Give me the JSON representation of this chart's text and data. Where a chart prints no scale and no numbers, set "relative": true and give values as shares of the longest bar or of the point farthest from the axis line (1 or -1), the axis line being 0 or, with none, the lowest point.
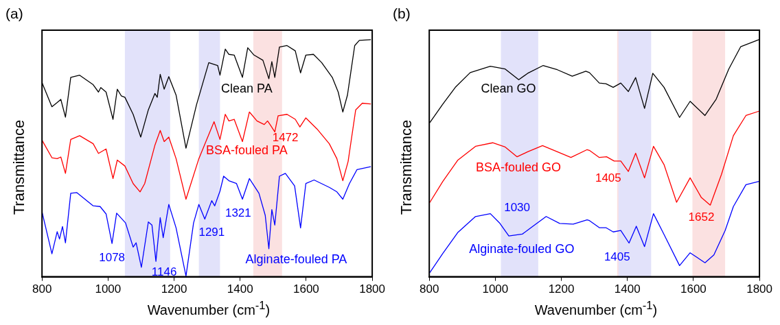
{
  "chart_data": [
    {
      "type": "line",
      "title": "(a)",
      "xlabel": "Wavenumber (cm$^{-1}$)",
      "ylabel": "Transmittance",
      "xlim": [
        800,
        1800
      ],
      "xticks": [
        800,
        1000,
        1200,
        1400,
        1600,
        1800
      ],
      "relative": true,
      "grid": false,
      "legend": false,
      "series": [
        {
          "name": "Clean PA",
          "color": "#000000",
          "x": [
            800,
            830,
            846,
            857,
            871,
            887,
            914,
            955,
            971,
            978,
            994,
            1015,
            1028,
            1040,
            1051,
            1076,
            1099,
            1122,
            1142,
            1149,
            1158,
            1170,
            1184,
            1206,
            1236,
            1268,
            1305,
            1332,
            1339,
            1355,
            1366,
            1382,
            1407,
            1423,
            1442,
            1469,
            1487,
            1496,
            1505,
            1519,
            1542,
            1567,
            1583,
            1599,
            1622,
            1647,
            1679,
            1697,
            1711,
            1725,
            1747,
            1761,
            1795
          ],
          "values": [
            0.819,
            0.717,
            0.735,
            0.748,
            0.673,
            0.841,
            0.85,
            0.81,
            0.779,
            0.798,
            0.779,
            0.664,
            0.791,
            0.763,
            0.757,
            0.685,
            0.589,
            0.704,
            0.773,
            0.757,
            0.854,
            0.791,
            0.844,
            0.766,
            0.542,
            0.726,
            0.903,
            0.891,
            0.85,
            0.96,
            0.938,
            0.935,
            0.841,
            0.966,
            0.935,
            0.913,
            0.835,
            0.907,
            0.841,
            0.969,
            0.975,
            0.953,
            0.86,
            0.935,
            0.938,
            0.903,
            0.841,
            0.779,
            0.695,
            0.766,
            0.975,
            0.997,
            1.0
          ]
        },
        {
          "name": "BSA-fouled PA",
          "color": "#ff0000",
          "x": [
            800,
            830,
            846,
            857,
            871,
            887,
            914,
            955,
            971,
            994,
            1015,
            1028,
            1051,
            1076,
            1097,
            1111,
            1142,
            1158,
            1170,
            1184,
            1206,
            1236,
            1275,
            1321,
            1339,
            1355,
            1366,
            1382,
            1407,
            1428,
            1451,
            1473,
            1483,
            1492,
            1505,
            1515,
            1542,
            1567,
            1581,
            1599,
            1633,
            1670,
            1693,
            1711,
            1727,
            1750,
            1770,
            1795
          ],
          "values": [
            0.576,
            0.502,
            0.498,
            0.505,
            0.436,
            0.579,
            0.595,
            0.561,
            0.52,
            0.539,
            0.414,
            0.492,
            0.467,
            0.393,
            0.358,
            0.393,
            0.555,
            0.617,
            0.57,
            0.589,
            0.498,
            0.327,
            0.498,
            0.654,
            0.579,
            0.685,
            0.657,
            0.664,
            0.57,
            0.695,
            0.657,
            0.642,
            0.657,
            0.639,
            0.611,
            0.679,
            0.685,
            0.664,
            0.632,
            0.67,
            0.623,
            0.561,
            0.498,
            0.405,
            0.486,
            0.704,
            0.732,
            0.729
          ]
        },
        {
          "name": "Alginate-fouled PA",
          "color": "#0000ff",
          "x": [
            800,
            830,
            846,
            853,
            862,
            871,
            887,
            905,
            955,
            976,
            994,
            1012,
            1026,
            1053,
            1076,
            1085,
            1101,
            1122,
            1133,
            1145,
            1158,
            1167,
            1184,
            1206,
            1236,
            1259,
            1275,
            1293,
            1314,
            1323,
            1339,
            1350,
            1366,
            1389,
            1407,
            1428,
            1457,
            1476,
            1487,
            1496,
            1505,
            1519,
            1537,
            1565,
            1583,
            1599,
            1624,
            1670,
            1693,
            1711,
            1731,
            1754,
            1795
          ],
          "values": [
            0.274,
            0.097,
            0.19,
            0.159,
            0.212,
            0.143,
            0.352,
            0.355,
            0.299,
            0.296,
            0.265,
            0.14,
            0.268,
            0.227,
            0.125,
            0.143,
            0.04,
            0.231,
            0.218,
            0.065,
            0.249,
            0.165,
            0.305,
            0.206,
            0.003,
            0.227,
            0.305,
            0.243,
            0.321,
            0.299,
            0.361,
            0.424,
            0.405,
            0.393,
            0.327,
            0.414,
            0.352,
            0.259,
            0.118,
            0.283,
            0.218,
            0.424,
            0.436,
            0.383,
            0.206,
            0.393,
            0.408,
            0.377,
            0.358,
            0.327,
            0.393,
            0.452,
            0.464
          ]
        }
      ],
      "bands": [
        {
          "axis": "x",
          "from": 1440,
          "to": 1527,
          "color": "#fbe1e1"
        },
        {
          "axis": "x",
          "from": 1051,
          "to": 1188,
          "color": "#e2e2fa"
        },
        {
          "axis": "x",
          "from": 1275,
          "to": 1339,
          "color": "#e2e2fa"
        }
      ],
      "annotations": [
        "1472",
        "1321",
        "1291",
        "1078",
        "1146"
      ]
    },
    {
      "type": "line",
      "title": "(b)",
      "xlabel": "Wavenumber (cm$^{-1}$)",
      "ylabel": "Transmittance",
      "xlim": [
        800,
        1800
      ],
      "xticks": [
        800,
        1000,
        1200,
        1400,
        1600,
        1800
      ],
      "relative": true,
      "grid": false,
      "legend": false,
      "series": [
        {
          "name": "Clean GO",
          "color": "#000000",
          "x": [
            802,
            841,
            879,
            924,
            985,
            1030,
            1071,
            1098,
            1145,
            1188,
            1233,
            1274,
            1285,
            1315,
            1335,
            1357,
            1380,
            1403,
            1425,
            1452,
            1477,
            1511,
            1558,
            1590,
            1635,
            1669,
            1707,
            1743,
            1798
          ],
          "values": [
            0.651,
            0.728,
            0.799,
            0.861,
            0.888,
            0.876,
            0.831,
            0.858,
            0.891,
            0.873,
            0.846,
            0.867,
            0.861,
            0.817,
            0.814,
            0.799,
            0.817,
            0.781,
            0.84,
            0.71,
            0.858,
            0.799,
            0.672,
            0.74,
            0.68,
            0.749,
            0.876,
            0.97,
            1.0
          ]
        },
        {
          "name": "BSA-fouled GO",
          "color": "#ff0000",
          "x": [
            802,
            841,
            886,
            940,
            992,
            1030,
            1066,
            1098,
            1143,
            1188,
            1229,
            1278,
            1285,
            1315,
            1337,
            1360,
            1380,
            1403,
            1425,
            1452,
            1479,
            1511,
            1549,
            1590,
            1624,
            1651,
            1685,
            1721,
            1759,
            1798
          ],
          "values": [
            0.314,
            0.402,
            0.491,
            0.55,
            0.565,
            0.547,
            0.506,
            0.527,
            0.553,
            0.527,
            0.503,
            0.536,
            0.533,
            0.503,
            0.506,
            0.488,
            0.488,
            0.444,
            0.521,
            0.417,
            0.55,
            0.473,
            0.314,
            0.417,
            0.334,
            0.302,
            0.432,
            0.595,
            0.68,
            0.698
          ]
        },
        {
          "name": "Alginate-fouled GO",
          "color": "#0000ff",
          "x": [
            802,
            841,
            886,
            940,
            985,
            1014,
            1041,
            1082,
            1111,
            1154,
            1195,
            1236,
            1278,
            1285,
            1315,
            1335,
            1357,
            1380,
            1405,
            1427,
            1452,
            1479,
            1511,
            1558,
            1590,
            1635,
            1662,
            1696,
            1721,
            1759,
            1798
          ],
          "values": [
            0.018,
            0.098,
            0.186,
            0.254,
            0.266,
            0.225,
            0.172,
            0.18,
            0.21,
            0.254,
            0.225,
            0.222,
            0.24,
            0.237,
            0.207,
            0.207,
            0.189,
            0.195,
            0.142,
            0.213,
            0.127,
            0.266,
            0.178,
            0.047,
            0.101,
            0.059,
            0.092,
            0.195,
            0.296,
            0.388,
            0.402
          ]
        }
      ],
      "bands": [
        {
          "axis": "x",
          "from": 1017,
          "to": 1130,
          "color": "#e2e2fa"
        },
        {
          "axis": "x",
          "from": 1369,
          "to": 1468,
          "color": "#fbe1e1"
        },
        {
          "axis": "x",
          "from": 1597,
          "to": 1696,
          "color": "#fbe1e1"
        },
        {
          "axis": "x",
          "from": 1373,
          "to": 1472,
          "color": "#e2e2fa"
        }
      ],
      "annotations": [
        "1030",
        "1405",
        "1652",
        "1405"
      ]
    }
  ]
}
